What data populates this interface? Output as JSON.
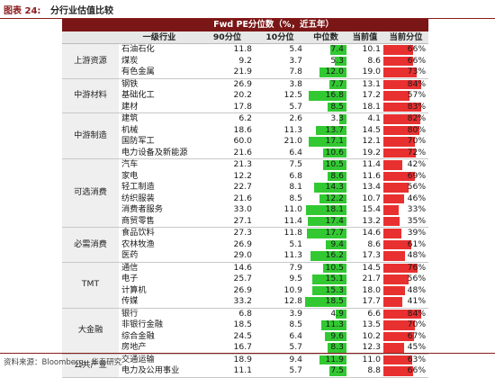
{
  "figure": {
    "label": "图表 24:",
    "title": "分行业估值比较"
  },
  "table": {
    "title": "Fwd PE分位数（%，近五年）",
    "headers": [
      "一级行业",
      "90分位",
      "10分位",
      "中位数",
      "当前值",
      "当前分位"
    ],
    "colors": {
      "header_bg": "#7a1616",
      "median_bar": "#32c832",
      "pct_bar": "#e83030"
    },
    "groups": [
      {
        "name": "上游资源",
        "rows": [
          {
            "industry": "石油石化",
            "p90": "11.8",
            "p10": "5.4",
            "median": "7.4",
            "current": "10.1",
            "pct": "66%",
            "pct_value": 66
          },
          {
            "industry": "煤炭",
            "p90": "9.2",
            "p10": "3.7",
            "median": "5.3",
            "current": "8.6",
            "pct": "66%",
            "pct_value": 66
          },
          {
            "industry": "有色金属",
            "p90": "21.9",
            "p10": "7.8",
            "median": "12.0",
            "current": "19.0",
            "pct": "73%",
            "pct_value": 73
          }
        ]
      },
      {
        "name": "中游材料",
        "rows": [
          {
            "industry": "钢铁",
            "p90": "26.9",
            "p10": "3.8",
            "median": "7.7",
            "current": "13.1",
            "pct": "84%",
            "pct_value": 84
          },
          {
            "industry": "基础化工",
            "p90": "20.2",
            "p10": "12.5",
            "median": "16.8",
            "current": "17.2",
            "pct": "57%",
            "pct_value": 57
          },
          {
            "industry": "建材",
            "p90": "17.8",
            "p10": "5.7",
            "median": "8.5",
            "current": "18.1",
            "pct": "83%",
            "pct_value": 83
          }
        ]
      },
      {
        "name": "中游制造",
        "rows": [
          {
            "industry": "建筑",
            "p90": "6.2",
            "p10": "2.6",
            "median": "3.3",
            "current": "4.1",
            "pct": "82%",
            "pct_value": 82
          },
          {
            "industry": "机械",
            "p90": "18.6",
            "p10": "11.3",
            "median": "13.7",
            "current": "14.5",
            "pct": "80%",
            "pct_value": 80
          },
          {
            "industry": "国防军工",
            "p90": "60.0",
            "p10": "21.0",
            "median": "17.1",
            "current": "12.1",
            "pct": "70%",
            "pct_value": 70
          },
          {
            "industry": "电力设备及新能源",
            "p90": "21.6",
            "p10": "6.4",
            "median": "10.6",
            "current": "19.2",
            "pct": "72%",
            "pct_value": 72
          }
        ]
      },
      {
        "name": "可选消费",
        "rows": [
          {
            "industry": "汽车",
            "p90": "21.3",
            "p10": "7.5",
            "median": "10.5",
            "current": "11.4",
            "pct": "42%",
            "pct_value": 42
          },
          {
            "industry": "家电",
            "p90": "12.2",
            "p10": "6.8",
            "median": "8.6",
            "current": "11.6",
            "pct": "69%",
            "pct_value": 69
          },
          {
            "industry": "轻工制造",
            "p90": "22.7",
            "p10": "8.1",
            "median": "14.3",
            "current": "13.4",
            "pct": "56%",
            "pct_value": 56
          },
          {
            "industry": "纺织服装",
            "p90": "21.6",
            "p10": "8.5",
            "median": "12.2",
            "current": "10.7",
            "pct": "46%",
            "pct_value": 46
          },
          {
            "industry": "消费者服务",
            "p90": "33.0",
            "p10": "11.0",
            "median": "18.1",
            "current": "15.4",
            "pct": "33%",
            "pct_value": 33
          },
          {
            "industry": "商贸零售",
            "p90": "27.1",
            "p10": "11.4",
            "median": "17.4",
            "current": "13.2",
            "pct": "35%",
            "pct_value": 35
          }
        ]
      },
      {
        "name": "必需消费",
        "rows": [
          {
            "industry": "食品饮料",
            "p90": "27.3",
            "p10": "11.8",
            "median": "17.7",
            "current": "14.6",
            "pct": "39%",
            "pct_value": 39
          },
          {
            "industry": "农林牧渔",
            "p90": "26.9",
            "p10": "5.1",
            "median": "9.4",
            "current": "8.6",
            "pct": "61%",
            "pct_value": 61
          },
          {
            "industry": "医药",
            "p90": "29.0",
            "p10": "11.3",
            "median": "16.2",
            "current": "17.3",
            "pct": "48%",
            "pct_value": 48
          }
        ]
      },
      {
        "name": "TMT",
        "rows": [
          {
            "industry": "通信",
            "p90": "14.6",
            "p10": "7.9",
            "median": "10.5",
            "current": "14.5",
            "pct": "76%",
            "pct_value": 76
          },
          {
            "industry": "电子",
            "p90": "25.7",
            "p10": "9.5",
            "median": "15.1",
            "current": "21.7",
            "pct": "56%",
            "pct_value": 56
          },
          {
            "industry": "计算机",
            "p90": "26.9",
            "p10": "10.9",
            "median": "15.3",
            "current": "18.0",
            "pct": "48%",
            "pct_value": 48
          },
          {
            "industry": "传媒",
            "p90": "33.2",
            "p10": "12.8",
            "median": "18.5",
            "current": "17.7",
            "pct": "41%",
            "pct_value": 41
          }
        ]
      },
      {
        "name": "大金融",
        "rows": [
          {
            "industry": "银行",
            "p90": "6.8",
            "p10": "3.9",
            "median": "4.9",
            "current": "6.6",
            "pct": "84%",
            "pct_value": 84
          },
          {
            "industry": "非银行金融",
            "p90": "18.5",
            "p10": "8.5",
            "median": "11.3",
            "current": "13.5",
            "pct": "70%",
            "pct_value": 70
          },
          {
            "industry": "综合金融",
            "p90": "24.5",
            "p10": "6.4",
            "median": "9.6",
            "current": "10.2",
            "pct": "67%",
            "pct_value": 67
          },
          {
            "industry": "房地产",
            "p90": "16.7",
            "p10": "5.7",
            "median": "8.3",
            "current": "12.3",
            "pct": "45%",
            "pct_value": 45
          }
        ]
      },
      {
        "name": "公共产业",
        "rows": [
          {
            "industry": "交通运输",
            "p90": "18.9",
            "p10": "9.4",
            "median": "11.9",
            "current": "11.0",
            "pct": "63%",
            "pct_value": 63
          },
          {
            "industry": "电力及公用事业",
            "p90": "11.1",
            "p10": "5.7",
            "median": "7.5",
            "current": "8.8",
            "pct": "66%",
            "pct_value": 66
          }
        ]
      }
    ]
  },
  "source": "资料来源：Bloomberg，华泰研究"
}
